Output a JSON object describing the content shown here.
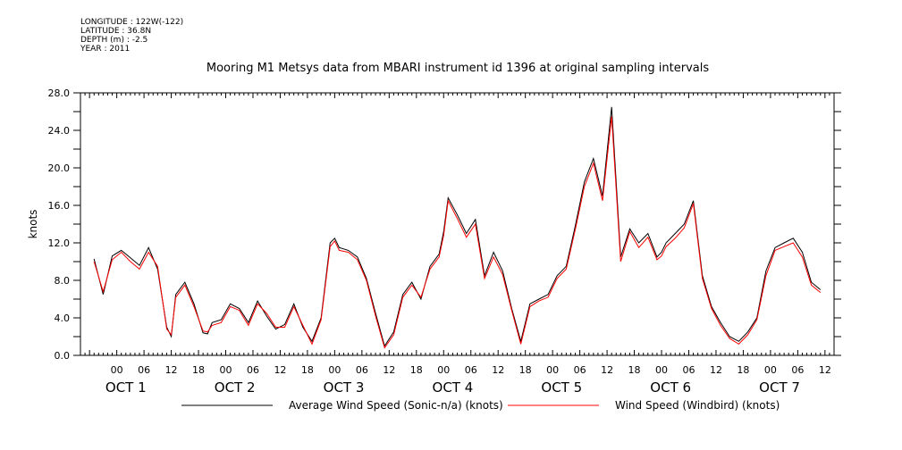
{
  "meta": {
    "longitude": "LONGITUDE : 122W(-122)",
    "latitude": "LATITUDE : 36.8N",
    "depth": "DEPTH (m) : -2.5",
    "year": "YEAR : 2011"
  },
  "chart_data": {
    "type": "line",
    "title": "Mooring M1 Metsys data from MBARI instrument id 1396 at original sampling intervals",
    "ylabel": "knots",
    "xlabel": "",
    "ylim": [
      0,
      28
    ],
    "xlim_hours": [
      -8,
      158
    ],
    "y_ticks": [
      "0.0",
      "4.0",
      "8.0",
      "12.0",
      "16.0",
      "20.0",
      "24.0",
      "28.0"
    ],
    "x_hour_ticks": [
      "00",
      "06",
      "12",
      "18",
      "00",
      "06",
      "12",
      "18",
      "00",
      "06",
      "12",
      "18",
      "00",
      "06",
      "12",
      "18",
      "00",
      "06",
      "12",
      "18",
      "00",
      "06",
      "12",
      "18",
      "00",
      "06",
      "12"
    ],
    "x_day_labels": [
      "OCT 1",
      "OCT 2",
      "OCT 3",
      "OCT 4",
      "OCT 5",
      "OCT 6",
      "OCT 7"
    ],
    "grid": false,
    "legend_position": "bottom",
    "x_hours": [
      -5,
      -3,
      -1,
      1,
      3,
      5,
      7,
      9,
      11,
      12,
      13,
      15,
      17,
      19,
      20,
      21,
      23,
      25,
      27,
      29,
      31,
      33,
      35,
      37,
      39,
      41,
      43,
      45,
      47,
      48,
      49,
      51,
      53,
      55,
      57,
      59,
      61,
      63,
      65,
      67,
      69,
      71,
      72,
      73,
      75,
      77,
      79,
      81,
      83,
      85,
      87,
      89,
      91,
      93,
      95,
      96,
      97,
      99,
      101,
      103,
      105,
      107,
      109,
      111,
      113,
      115,
      117,
      119,
      120,
      121,
      123,
      125,
      127,
      129,
      131,
      133,
      135,
      137,
      139,
      141,
      143,
      145,
      147,
      149,
      151,
      153,
      155
    ],
    "series": [
      {
        "name": "Average Wind Speed (Sonic-n/a) (knots)",
        "color": "#000000",
        "values": [
          10.3,
          6.5,
          10.6,
          11.2,
          10.4,
          9.6,
          11.5,
          9.2,
          3.0,
          2.0,
          6.5,
          7.8,
          5.5,
          2.4,
          2.3,
          3.5,
          3.8,
          5.5,
          5.0,
          3.5,
          5.8,
          4.2,
          2.8,
          3.3,
          5.5,
          3.0,
          1.5,
          4.0,
          12.0,
          12.5,
          11.5,
          11.2,
          10.5,
          8.2,
          4.5,
          1.0,
          2.5,
          6.5,
          7.8,
          6.0,
          9.5,
          10.8,
          13.2,
          16.8,
          15.0,
          13.0,
          14.5,
          8.5,
          11.0,
          9.0,
          5.0,
          1.5,
          5.5,
          6.0,
          6.5,
          7.5,
          8.5,
          9.5,
          13.8,
          18.5,
          21.0,
          17.0,
          26.5,
          10.5,
          13.5,
          12.0,
          13.0,
          10.5,
          11.0,
          12.0,
          13.0,
          14.0,
          16.5,
          8.5,
          5.2,
          3.5,
          2.0,
          1.5,
          2.5,
          4.0,
          9.0,
          11.5,
          12.0,
          12.5,
          11.0,
          7.8,
          7.0
        ]
      },
      {
        "name": "Wind Speed (Windbird) (knots)",
        "color": "#ff0000",
        "values": [
          10.0,
          6.8,
          10.2,
          11.0,
          10.0,
          9.2,
          11.0,
          9.5,
          2.8,
          2.2,
          6.2,
          7.5,
          5.2,
          2.6,
          2.5,
          3.2,
          3.5,
          5.2,
          4.8,
          3.2,
          5.5,
          4.5,
          3.0,
          3.0,
          5.2,
          3.2,
          1.2,
          3.8,
          11.6,
          12.2,
          11.2,
          11.0,
          10.2,
          8.0,
          4.2,
          0.8,
          2.2,
          6.2,
          7.5,
          6.2,
          9.2,
          10.5,
          12.8,
          16.5,
          14.6,
          12.6,
          14.0,
          8.2,
          10.5,
          8.6,
          4.8,
          1.2,
          5.2,
          5.8,
          6.2,
          7.2,
          8.2,
          9.2,
          13.4,
          18.0,
          20.5,
          16.5,
          25.5,
          10.0,
          13.2,
          11.5,
          12.6,
          10.2,
          10.6,
          11.6,
          12.5,
          13.6,
          16.2,
          8.2,
          5.0,
          3.2,
          1.8,
          1.2,
          2.2,
          3.8,
          8.5,
          11.2,
          11.6,
          12.0,
          10.5,
          7.5,
          6.7
        ]
      }
    ]
  }
}
